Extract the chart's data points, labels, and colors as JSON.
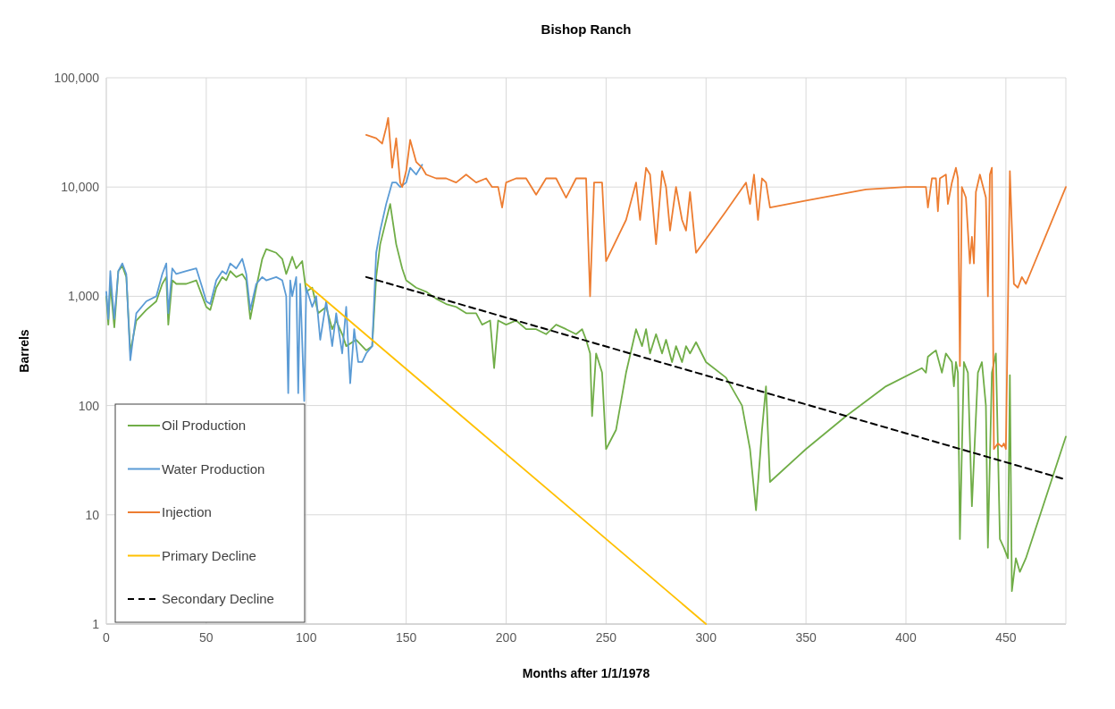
{
  "chart_data": {
    "type": "line",
    "title": "Bishop Ranch",
    "xlabel": "Months after 1/1/1978",
    "ylabel": "Barrels",
    "log": "y",
    "grid": true,
    "legend": "bottom left",
    "marker": "none",
    "xlim": [
      0,
      480
    ],
    "xticks": [
      0,
      50,
      100,
      150,
      200,
      250,
      300,
      350,
      400,
      450
    ],
    "ylim": [
      1,
      100000
    ],
    "yticks": [
      {
        "value": 1,
        "label": "1"
      },
      {
        "value": 10,
        "label": "10"
      },
      {
        "value": 100,
        "label": "100"
      },
      {
        "value": 1000,
        "label": "1,000"
      },
      {
        "value": 10000,
        "label": "10,000"
      },
      {
        "value": 100000,
        "label": "100,000"
      }
    ],
    "series": [
      {
        "name": "Oil Production",
        "color": "#70ad47",
        "line_style": "solid",
        "x": [
          0,
          1,
          2,
          4,
          6,
          8,
          10,
          12,
          15,
          20,
          25,
          28,
          30,
          31,
          33,
          35,
          40,
          45,
          48,
          50,
          52,
          55,
          58,
          60,
          62,
          65,
          68,
          70,
          72,
          75,
          78,
          80,
          85,
          88,
          90,
          93,
          95,
          98,
          100,
          103,
          106,
          110,
          113,
          115,
          118,
          120,
          125,
          130,
          133,
          135,
          137,
          140,
          142,
          145,
          148,
          150,
          155,
          160,
          165,
          170,
          175,
          180,
          185,
          188,
          192,
          194,
          196,
          200,
          205,
          210,
          215,
          220,
          225,
          230,
          235,
          238,
          240,
          242,
          243,
          245,
          248,
          250,
          255,
          260,
          265,
          268,
          270,
          272,
          275,
          278,
          280,
          283,
          285,
          288,
          290,
          292,
          295,
          300,
          310,
          318,
          322,
          325,
          328,
          330,
          332,
          350,
          370,
          390,
          408,
          410,
          411,
          413,
          415,
          418,
          420,
          423,
          424,
          425,
          426,
          427,
          429,
          431,
          433,
          436,
          438,
          440,
          441,
          443,
          445,
          447,
          449,
          451,
          452,
          453,
          455,
          457,
          460,
          480
        ],
        "values": [
          1000,
          550,
          1300,
          520,
          1700,
          1900,
          1500,
          310,
          600,
          750,
          900,
          1300,
          1500,
          550,
          1400,
          1300,
          1300,
          1400,
          1000,
          800,
          750,
          1200,
          1500,
          1400,
          1700,
          1500,
          1600,
          1400,
          620,
          1200,
          2200,
          2700,
          2500,
          2200,
          1600,
          2300,
          1800,
          2100,
          1100,
          1200,
          700,
          800,
          500,
          600,
          450,
          350,
          400,
          320,
          350,
          1500,
          3000,
          5000,
          7000,
          3000,
          1800,
          1400,
          1200,
          1100,
          950,
          850,
          800,
          700,
          700,
          550,
          600,
          220,
          600,
          550,
          600,
          500,
          500,
          450,
          550,
          500,
          450,
          500,
          400,
          300,
          80,
          300,
          200,
          40,
          60,
          200,
          500,
          350,
          500,
          300,
          450,
          300,
          400,
          250,
          350,
          250,
          350,
          300,
          380,
          250,
          180,
          100,
          40,
          11,
          60,
          150,
          20,
          40,
          80,
          150,
          220,
          200,
          280,
          300,
          320,
          200,
          300,
          250,
          150,
          250,
          200,
          6,
          250,
          200,
          12,
          200,
          250,
          100,
          5,
          200,
          300,
          6,
          5,
          4,
          190,
          2,
          4,
          3,
          4,
          52
        ]
      },
      {
        "name": "Water Production",
        "color": "#5b9bd5",
        "line_style": "solid",
        "x": [
          0,
          1,
          2,
          3,
          4,
          6,
          8,
          10,
          12,
          15,
          20,
          25,
          28,
          30,
          31,
          33,
          35,
          40,
          45,
          48,
          50,
          52,
          55,
          58,
          60,
          62,
          65,
          68,
          70,
          72,
          75,
          78,
          80,
          85,
          88,
          90,
          91,
          92,
          93,
          95,
          96,
          97,
          99,
          100,
          103,
          105,
          107,
          110,
          113,
          115,
          118,
          120,
          122,
          124,
          126,
          128,
          130,
          133,
          135,
          137,
          140,
          143,
          145,
          147,
          150,
          152,
          155,
          158
        ],
        "values": [
          1100,
          620,
          1700,
          1000,
          620,
          1700,
          2000,
          1600,
          260,
          700,
          900,
          1000,
          1600,
          2000,
          700,
          1800,
          1600,
          1700,
          1800,
          1200,
          900,
          850,
          1400,
          1700,
          1600,
          2000,
          1800,
          2200,
          1600,
          750,
          1300,
          1500,
          1400,
          1500,
          1400,
          1000,
          130,
          1400,
          1000,
          1500,
          130,
          1300,
          110,
          1200,
          800,
          1000,
          400,
          900,
          350,
          700,
          300,
          800,
          160,
          500,
          250,
          250,
          300,
          350,
          2500,
          4000,
          7000,
          11000,
          11000,
          10000,
          11000,
          15000,
          13000,
          16000
        ]
      },
      {
        "name": "Injection",
        "color": "#ed7d31",
        "line_style": "solid",
        "x": [
          130,
          135,
          138,
          140,
          141,
          143,
          145,
          147,
          148,
          150,
          152,
          155,
          158,
          160,
          165,
          170,
          175,
          180,
          185,
          190,
          193,
          196,
          198,
          200,
          205,
          210,
          215,
          220,
          225,
          230,
          235,
          240,
          242,
          244,
          248,
          250,
          260,
          265,
          267,
          270,
          272,
          275,
          278,
          280,
          282,
          285,
          288,
          290,
          292,
          295,
          310,
          320,
          322,
          324,
          326,
          328,
          330,
          332,
          350,
          380,
          400,
          410,
          411,
          413,
          415,
          416,
          417,
          420,
          421,
          423,
          425,
          426,
          427,
          428,
          430,
          432,
          433,
          434,
          435,
          437,
          440,
          441,
          442,
          443,
          444,
          446,
          448,
          449,
          450,
          452,
          454,
          456,
          458,
          460,
          480
        ],
        "values": [
          30000,
          28000,
          25000,
          35000,
          43000,
          15000,
          28000,
          11000,
          10000,
          14000,
          27000,
          17000,
          15000,
          13000,
          12000,
          12000,
          11000,
          13000,
          11000,
          12000,
          10000,
          10000,
          6500,
          11000,
          12000,
          12000,
          8500,
          12000,
          12000,
          8000,
          12000,
          12000,
          1000,
          11000,
          11000,
          2100,
          5000,
          11000,
          5000,
          15000,
          13000,
          3000,
          14000,
          10000,
          4000,
          10000,
          5000,
          4000,
          9000,
          2500,
          6000,
          11000,
          7000,
          13000,
          5000,
          12000,
          11000,
          6500,
          7500,
          9500,
          10000,
          10000,
          6500,
          12000,
          12000,
          6000,
          12000,
          13000,
          7000,
          11000,
          15000,
          12000,
          230,
          10000,
          8000,
          2000,
          3500,
          2000,
          9000,
          13000,
          8000,
          1000,
          13000,
          15000,
          40,
          45,
          42,
          45,
          40,
          14000,
          1300,
          1200,
          1500,
          1300,
          10000
        ]
      },
      {
        "name": "Primary Decline",
        "color": "#ffc000",
        "line_style": "solid",
        "x": [
          100,
          300
        ],
        "values": [
          1300,
          1
        ]
      },
      {
        "name": "Secondary Decline",
        "color": "#000000",
        "line_style": "dashed",
        "x": [
          130,
          480
        ],
        "values": [
          1500,
          21
        ]
      }
    ]
  }
}
